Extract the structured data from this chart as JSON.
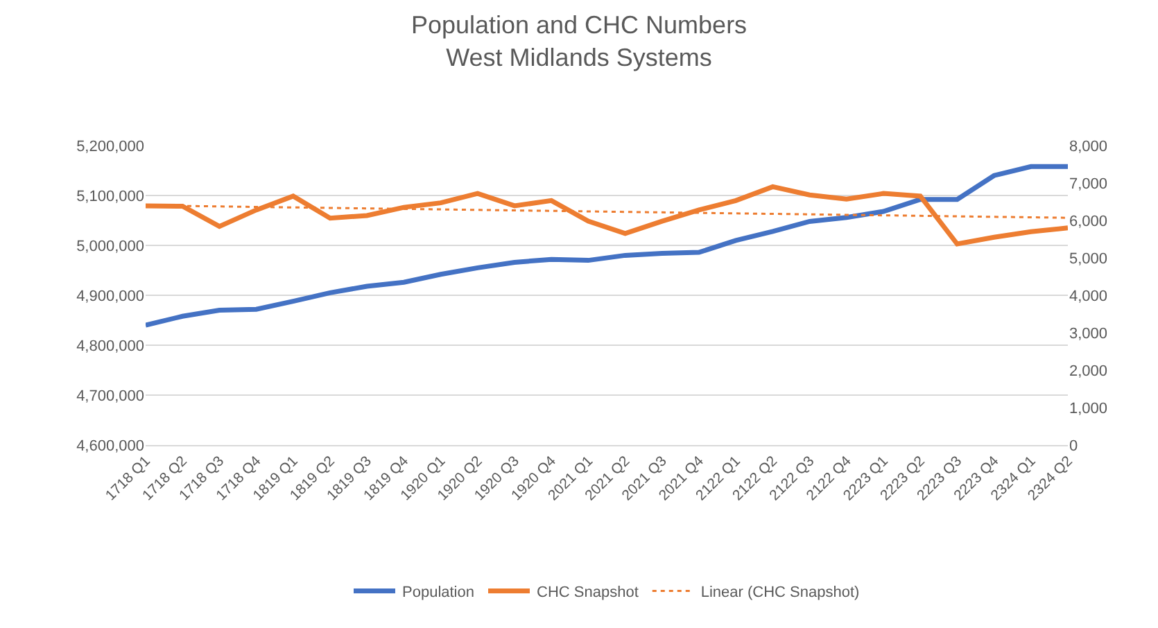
{
  "chart_data": {
    "type": "line",
    "title": "Population and CHC Numbers\nWest Midlands Systems",
    "categories": [
      "1718 Q1",
      "1718 Q2",
      "1718 Q3",
      "1718 Q4",
      "1819 Q1",
      "1819 Q2",
      "1819 Q3",
      "1819 Q4",
      "1920 Q1",
      "1920 Q2",
      "1920 Q3",
      "1920 Q4",
      "2021 Q1",
      "2021 Q2",
      "2021 Q3",
      "2021 Q4",
      "2122 Q1",
      "2122 Q2",
      "2122 Q3",
      "2122 Q4",
      "2223 Q1",
      "2223 Q2",
      "2223 Q3",
      "2223 Q4",
      "2324 Q1",
      "2324 Q2"
    ],
    "series": [
      {
        "name": "Population",
        "color": "#4472c4",
        "values": [
          4840000,
          4858000,
          4870000,
          4872000,
          4888000,
          4905000,
          4918000,
          4926000,
          4942000,
          4955000,
          4966000,
          4972000,
          4970000,
          4980000,
          4984000,
          4986000,
          5010000,
          5028000,
          5048000,
          5056000,
          5068000,
          5092000,
          5092000,
          5140000,
          5158000,
          5158000
        ]
      },
      {
        "name": "CHC Snapshot",
        "color": "#ed7d31",
        "axis": "y2",
        "values": [
          6390,
          6380,
          5840,
          6280,
          6650,
          6060,
          6130,
          6350,
          6470,
          6720,
          6390,
          6530,
          5980,
          5650,
          5980,
          6280,
          6530,
          6900,
          6680,
          6570,
          6720,
          6650,
          5370,
          5550,
          5700,
          5800
        ]
      },
      {
        "name": "Linear (CHC Snapshot)",
        "color": "#ed7d31",
        "axis": "y2",
        "type": "line",
        "line_style": "dotted",
        "x": [
          "1718 Q1",
          "2324 Q2"
        ],
        "values": [
          6400,
          6070
        ]
      }
    ],
    "ylim": [
      4600000,
      5200000
    ],
    "yticks": [
      {
        "value": 4600000,
        "label": "4,600,000"
      },
      {
        "value": 4700000,
        "label": "4,700,000"
      },
      {
        "value": 4800000,
        "label": "4,800,000"
      },
      {
        "value": 4900000,
        "label": "4,900,000"
      },
      {
        "value": 5000000,
        "label": "5,000,000"
      },
      {
        "value": 5100000,
        "label": "5,100,000"
      },
      {
        "value": 5200000,
        "label": "5,200,000"
      }
    ],
    "y2lim": [
      0,
      8000
    ],
    "y2ticks": [
      0,
      {
        "value": 1000,
        "label": "1,000"
      },
      {
        "value": 2000,
        "label": "2,000"
      },
      {
        "value": 3000,
        "label": "3,000"
      },
      {
        "value": 4000,
        "label": "4,000"
      },
      {
        "value": 5000,
        "label": "5,000"
      },
      {
        "value": 6000,
        "label": "6,000"
      },
      {
        "value": 7000,
        "label": "7,000"
      },
      {
        "value": 8000,
        "label": "8,000"
      }
    ],
    "grid": "y",
    "legend": "bottom",
    "marker": "none",
    "line_style": "solid"
  }
}
